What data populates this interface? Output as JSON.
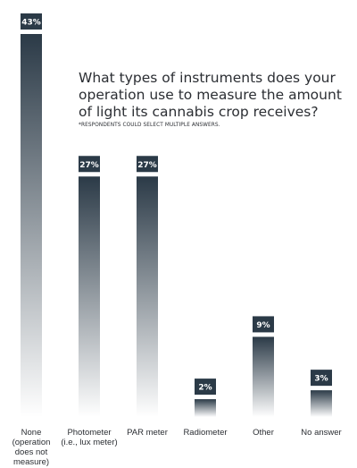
{
  "chart_data": {
    "type": "bar",
    "title": "What types of instruments does your operation use to measure the amount of light its cannabis crop receives?",
    "subtitle": "*RESPONDENTS COULD SELECT MULTIPLE ANSWERS.",
    "categories": [
      [
        "None",
        "(operation",
        "does not",
        "measure)"
      ],
      [
        "Photometer",
        "(i.e., lux meter)"
      ],
      [
        "PAR meter"
      ],
      [
        "Radiometer"
      ],
      [
        "Other"
      ],
      [
        "No answer"
      ]
    ],
    "values": [
      43,
      27,
      27,
      2,
      9,
      3
    ],
    "value_labels": [
      "43%",
      "27%",
      "27%",
      "2%",
      "9%",
      "3%"
    ],
    "unit": "%",
    "ylim": [
      0,
      43
    ],
    "grid": false,
    "colors": {
      "bar_top": "#2b3a47",
      "bar_bottom": "#ffffff",
      "label_bg": "#2b3a47",
      "text": "#2b2e33"
    }
  }
}
